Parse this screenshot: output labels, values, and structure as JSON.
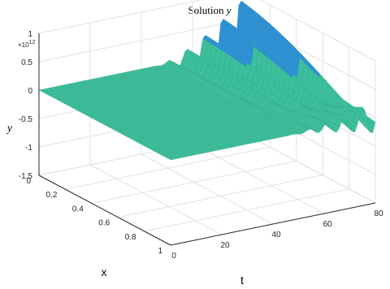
{
  "chart_data": {
    "type": "surface",
    "title_prefix": "Solution ",
    "title_var": "y",
    "xlabel": "t",
    "ylabel": "x",
    "zlabel": "y",
    "z_multiplier": "×10",
    "z_exponent": "12",
    "t_ticks": [
      "0",
      "20",
      "40",
      "60",
      "80"
    ],
    "x_ticks": [
      "0",
      "0.2",
      "0.4",
      "0.6",
      "0.8",
      "1"
    ],
    "z_ticks": [
      "1",
      "0.5",
      "0",
      "-0.5",
      "-1",
      "-1.5"
    ],
    "t_range": [
      0,
      80
    ],
    "x_range": [
      0,
      1
    ],
    "z_range": [
      -1.5,
      1
    ],
    "grid": true,
    "surface_color": "#3cbf9c",
    "surface_color_pos": "#2f8fd8",
    "surface_color_neg": "#f2c955",
    "description_values": {
      "flat_until_t": 45,
      "max_amplitude": 1.0,
      "min_amplitude": -1.0
    }
  }
}
